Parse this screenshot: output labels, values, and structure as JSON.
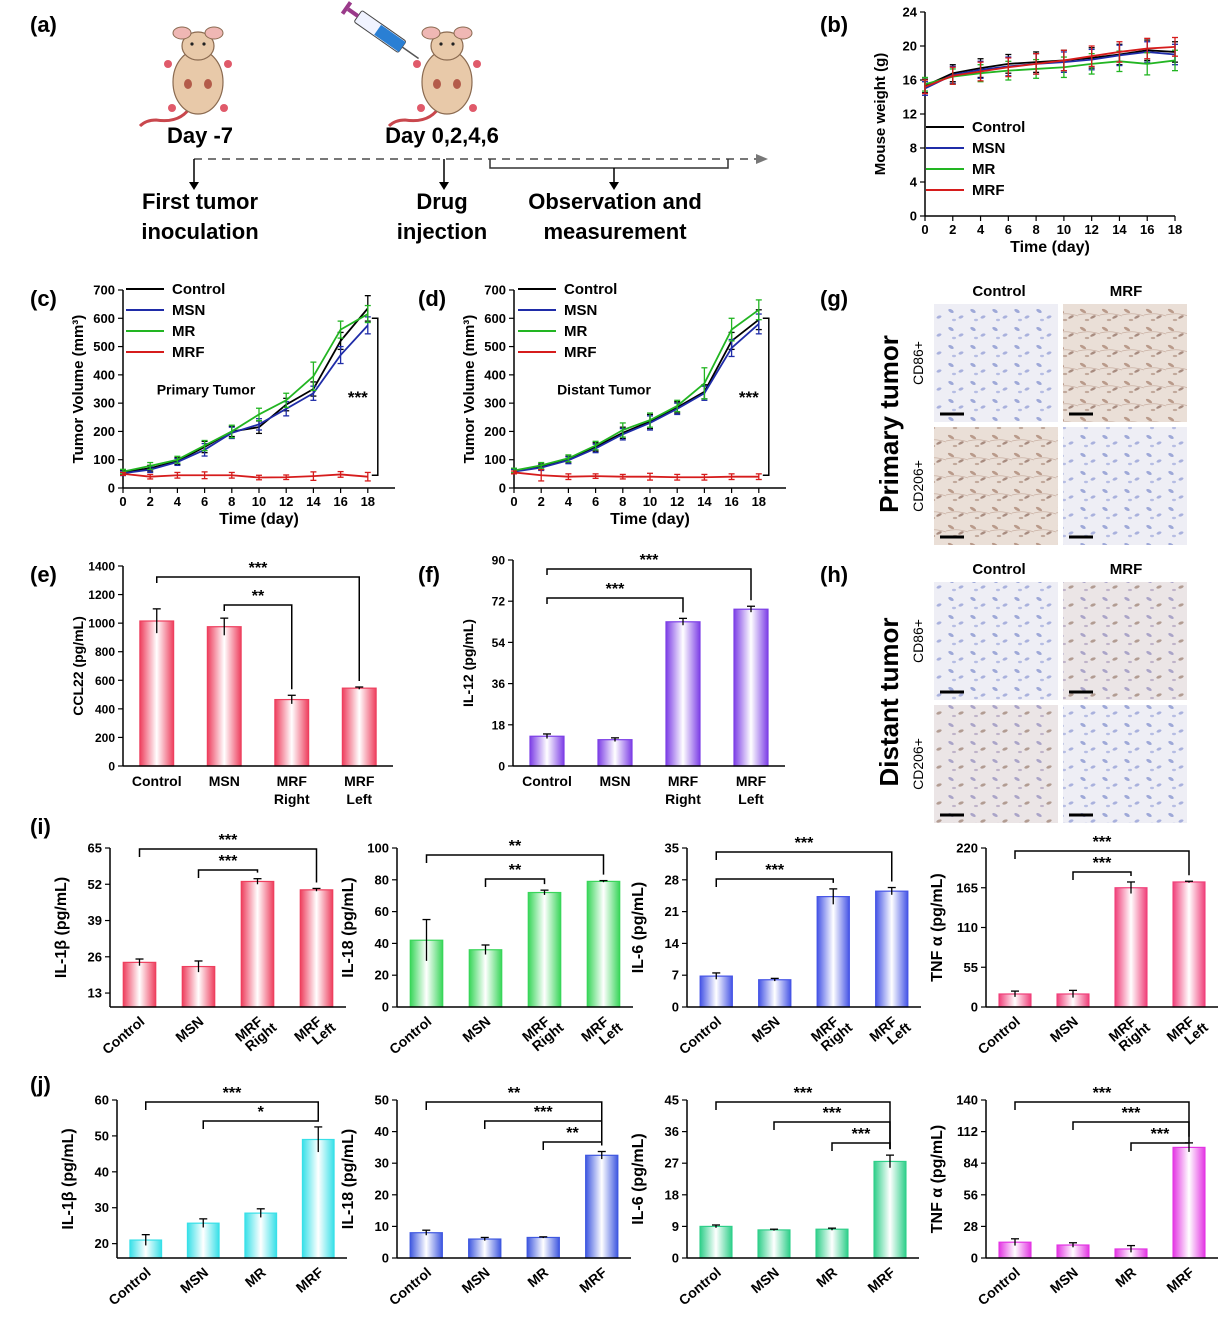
{
  "colors": {
    "control": "#000000",
    "msn": "#1f2ca8",
    "mr": "#22b522",
    "mrf": "#d61c1c",
    "bar_red": "#ee3f5e",
    "bar_purple": "#7d3fe6",
    "bar_green": "#39d65a",
    "bar_blue": "#4655e6",
    "bar_pink": "#f0407a",
    "bar_cyan": "#38e0e8",
    "bar_slate": "#3f58e0",
    "bar_teal": "#2fcf8a",
    "bar_magenta": "#e336e3"
  },
  "panel_a": {
    "label": "(a)",
    "day1": "Day -7",
    "day2": "Day 0,2,4,6",
    "step1": [
      "First tumor",
      "inoculation"
    ],
    "step2": [
      "Drug",
      "injection"
    ],
    "step3": [
      "Observation and",
      "measurement"
    ]
  },
  "panel_labels": {
    "b": "(b)",
    "c": "(c)",
    "d": "(d)",
    "e": "(e)",
    "f": "(f)",
    "g": "(g)",
    "h": "(h)",
    "i": "(i)",
    "j": "(j)"
  },
  "panel_g": {
    "col_labels": [
      "Control",
      "MRF"
    ],
    "row_labels": [
      "CD86+",
      "CD206+"
    ],
    "side_title": "Primary tumor"
  },
  "panel_h": {
    "col_labels": [
      "Control",
      "MRF"
    ],
    "row_labels": [
      "CD86+",
      "CD206+"
    ],
    "side_title": "Distant tumor"
  },
  "chart_data": [
    {
      "id": "b",
      "type": "line",
      "xlabel": "Time (day)",
      "ylabel": "Mouse weight (g)",
      "xlim": [
        0,
        18
      ],
      "ylim": [
        0,
        24
      ],
      "xticks": [
        0,
        2,
        4,
        6,
        8,
        10,
        12,
        14,
        16,
        18
      ],
      "yticks": [
        0,
        4,
        8,
        12,
        16,
        20,
        24
      ],
      "x": [
        0,
        2,
        4,
        6,
        8,
        10,
        12,
        14,
        16,
        18
      ],
      "legend": [
        "Control",
        "MSN",
        "MR",
        "MRF"
      ],
      "series": [
        {
          "name": "Control",
          "values": [
            15.3,
            16.8,
            17.4,
            17.9,
            18.1,
            18.3,
            18.6,
            19.0,
            19.5,
            19.3
          ],
          "err": [
            0.8,
            1.0,
            1.1,
            1.1,
            1.2,
            1.2,
            1.2,
            1.2,
            1.2,
            1.2
          ]
        },
        {
          "name": "MSN",
          "values": [
            15.0,
            16.6,
            17.2,
            17.6,
            17.9,
            18.1,
            18.4,
            18.9,
            19.3,
            19.0
          ],
          "err": [
            0.8,
            1.0,
            1.0,
            1.1,
            1.2,
            1.2,
            1.2,
            1.2,
            1.2,
            1.2
          ]
        },
        {
          "name": "MR",
          "values": [
            15.5,
            16.4,
            16.8,
            17.1,
            17.3,
            17.5,
            17.9,
            18.2,
            17.9,
            18.3
          ],
          "err": [
            0.8,
            0.9,
            1.0,
            1.1,
            1.1,
            1.2,
            1.2,
            1.2,
            1.3,
            1.2
          ]
        },
        {
          "name": "MRF",
          "values": [
            15.2,
            16.5,
            17.0,
            17.5,
            17.9,
            18.3,
            18.8,
            19.3,
            19.7,
            19.9
          ],
          "err": [
            0.8,
            1.0,
            1.1,
            1.1,
            1.2,
            1.2,
            1.2,
            1.2,
            1.2,
            1.1
          ]
        }
      ]
    },
    {
      "id": "c",
      "type": "line",
      "annotation": "Primary Tumor",
      "significance": "***",
      "xlabel": "Time (day)",
      "ylabel": "Tumor Volume (mm³)",
      "xlim": [
        0,
        20
      ],
      "ylim": [
        0,
        700
      ],
      "xticks": [
        0,
        2,
        4,
        6,
        8,
        10,
        12,
        14,
        16,
        18
      ],
      "yticks": [
        0,
        100,
        200,
        300,
        400,
        500,
        600,
        700
      ],
      "x": [
        0,
        2,
        4,
        6,
        8,
        10,
        12,
        14,
        16,
        18
      ],
      "legend": [
        "Control",
        "MSN",
        "MR",
        "MRF"
      ],
      "series": [
        {
          "name": "Control",
          "values": [
            55,
            70,
            95,
            145,
            200,
            215,
            295,
            350,
            520,
            635
          ],
          "err": [
            8,
            10,
            12,
            20,
            18,
            22,
            22,
            25,
            30,
            45
          ]
        },
        {
          "name": "MSN",
          "values": [
            52,
            65,
            92,
            135,
            195,
            225,
            280,
            335,
            470,
            575
          ],
          "err": [
            8,
            10,
            12,
            22,
            20,
            20,
            25,
            25,
            30,
            30
          ]
        },
        {
          "name": "MR",
          "values": [
            58,
            78,
            100,
            150,
            200,
            260,
            310,
            395,
            560,
            615
          ],
          "err": [
            8,
            12,
            12,
            18,
            22,
            22,
            25,
            50,
            30,
            30
          ]
        },
        {
          "name": "MRF",
          "values": [
            50,
            40,
            45,
            45,
            45,
            37,
            38,
            42,
            48,
            40
          ],
          "err": [
            5,
            8,
            10,
            12,
            10,
            8,
            8,
            15,
            10,
            15
          ]
        }
      ]
    },
    {
      "id": "d",
      "type": "line",
      "annotation": "Distant Tumor",
      "significance": "***",
      "xlabel": "Time (day)",
      "ylabel": "Tumor Volume (mm³)",
      "xlim": [
        0,
        20
      ],
      "ylim": [
        0,
        700
      ],
      "xticks": [
        0,
        2,
        4,
        6,
        8,
        10,
        12,
        14,
        16,
        18
      ],
      "yticks": [
        0,
        100,
        200,
        300,
        400,
        500,
        600,
        700
      ],
      "x": [
        0,
        2,
        4,
        6,
        8,
        10,
        12,
        14,
        16,
        18
      ],
      "legend": [
        "Control",
        "MSN",
        "MR",
        "MRF"
      ],
      "series": [
        {
          "name": "Control",
          "values": [
            60,
            75,
            100,
            145,
            195,
            235,
            285,
            340,
            520,
            595
          ],
          "err": [
            8,
            10,
            12,
            15,
            20,
            25,
            20,
            25,
            30,
            35
          ]
        },
        {
          "name": "MSN",
          "values": [
            58,
            72,
            98,
            140,
            190,
            230,
            280,
            335,
            495,
            580
          ],
          "err": [
            8,
            10,
            12,
            15,
            20,
            25,
            20,
            25,
            30,
            35
          ]
        },
        {
          "name": "MR",
          "values": [
            62,
            80,
            105,
            150,
            205,
            240,
            290,
            370,
            560,
            630
          ],
          "err": [
            8,
            10,
            12,
            15,
            25,
            25,
            20,
            55,
            40,
            35
          ]
        },
        {
          "name": "MRF",
          "values": [
            55,
            45,
            40,
            42,
            40,
            40,
            38,
            38,
            40,
            40
          ],
          "err": [
            5,
            20,
            10,
            8,
            8,
            12,
            10,
            10,
            10,
            10
          ]
        }
      ]
    },
    {
      "id": "e",
      "type": "bar",
      "ylabel": "CCL22 (pg/mL)",
      "ylim": [
        0,
        1400
      ],
      "yticks": [
        0,
        200,
        400,
        600,
        800,
        1000,
        1200,
        1400
      ],
      "categories": [
        [
          "Control"
        ],
        [
          "MSN"
        ],
        [
          "MRF",
          "Right"
        ],
        [
          "MRF",
          "Left"
        ]
      ],
      "values": [
        1015,
        975,
        465,
        545
      ],
      "err": [
        85,
        60,
        30,
        8
      ],
      "significance": [
        {
          "from": 1,
          "to": 2,
          "label": "**"
        },
        {
          "from": 0,
          "to": 3,
          "label": "***"
        }
      ]
    },
    {
      "id": "f",
      "type": "bar",
      "ylabel": "IL-12 (pg/mL)",
      "ylim": [
        0,
        90
      ],
      "yticks": [
        0,
        18,
        36,
        54,
        72,
        90
      ],
      "categories": [
        [
          "Control"
        ],
        [
          "MSN"
        ],
        [
          "MRF",
          "Right"
        ],
        [
          "MRF",
          "Left"
        ]
      ],
      "values": [
        13,
        11.5,
        63,
        68.5
      ],
      "err": [
        1,
        0.8,
        1.5,
        1.3
      ],
      "significance": [
        {
          "from": 0,
          "to": 2,
          "label": "***"
        },
        {
          "from": 0,
          "to": 3,
          "label": "***"
        }
      ]
    },
    {
      "id": "i1",
      "type": "bar",
      "ylabel": "IL-1β (pg/mL)",
      "ylim": [
        8,
        65
      ],
      "yticks": [
        13,
        26,
        39,
        52,
        65
      ],
      "categories": [
        [
          "Control"
        ],
        [
          "MSN"
        ],
        [
          "MRF",
          "Right"
        ],
        [
          "MRF",
          "Left"
        ]
      ],
      "values": [
        24,
        22.5,
        53,
        50
      ],
      "err": [
        1.2,
        2,
        1,
        0.5
      ],
      "significance": [
        {
          "from": 1,
          "to": 2,
          "label": "***"
        },
        {
          "from": 0,
          "to": 3,
          "label": "***"
        }
      ]
    },
    {
      "id": "i2",
      "type": "bar",
      "ylabel": "IL-18 (pg/mL)",
      "ylim": [
        0,
        100
      ],
      "yticks": [
        0,
        20,
        40,
        60,
        80,
        100
      ],
      "categories": [
        [
          "Control"
        ],
        [
          "MSN"
        ],
        [
          "MRF",
          "Right"
        ],
        [
          "MRF",
          "Left"
        ]
      ],
      "values": [
        42,
        36,
        72,
        79
      ],
      "err": [
        13,
        3,
        1.5,
        0.5
      ],
      "significance": [
        {
          "from": 1,
          "to": 2,
          "label": "**"
        },
        {
          "from": 0,
          "to": 3,
          "label": "**"
        }
      ]
    },
    {
      "id": "i3",
      "type": "bar",
      "ylabel": "IL-6 (pg/mL)",
      "ylim": [
        0,
        35
      ],
      "yticks": [
        0,
        7,
        14,
        21,
        28,
        35
      ],
      "categories": [
        [
          "Control"
        ],
        [
          "MSN"
        ],
        [
          "MRF",
          "Right"
        ],
        [
          "MRF",
          "Left"
        ]
      ],
      "values": [
        6.8,
        6,
        24.3,
        25.5
      ],
      "err": [
        0.7,
        0.3,
        1.7,
        0.8
      ],
      "significance": [
        {
          "from": 0,
          "to": 2,
          "label": "***"
        },
        {
          "from": 0,
          "to": 3,
          "label": "***"
        }
      ]
    },
    {
      "id": "i4",
      "type": "bar",
      "ylabel": "TNF α (pg/mL)",
      "ylim": [
        0,
        220
      ],
      "yticks": [
        0,
        55,
        110,
        165,
        220
      ],
      "categories": [
        [
          "Control"
        ],
        [
          "MSN"
        ],
        [
          "MRF",
          "Right"
        ],
        [
          "MRF",
          "Left"
        ]
      ],
      "values": [
        18,
        18,
        165,
        173
      ],
      "err": [
        4,
        5,
        8,
        1
      ],
      "significance": [
        {
          "from": 1,
          "to": 2,
          "label": "***"
        },
        {
          "from": 0,
          "to": 3,
          "label": "***"
        }
      ]
    },
    {
      "id": "j1",
      "type": "bar",
      "ylabel": "IL-1β (pg/mL)",
      "ylim": [
        16,
        60
      ],
      "yticks": [
        20,
        30,
        40,
        50,
        60
      ],
      "categories": [
        [
          "Control"
        ],
        [
          "MSN"
        ],
        [
          "MR"
        ],
        [
          "MRF"
        ]
      ],
      "values": [
        21,
        25.7,
        28.5,
        49
      ],
      "err": [
        1.5,
        1.2,
        1.2,
        3.5
      ],
      "significance": [
        {
          "from": 1,
          "to": 3,
          "label": "*"
        },
        {
          "from": 0,
          "to": 3,
          "label": "***"
        }
      ]
    },
    {
      "id": "j2",
      "type": "bar",
      "ylabel": "IL-18 (pg/mL)",
      "ylim": [
        0,
        50
      ],
      "yticks": [
        0,
        10,
        20,
        30,
        40,
        50
      ],
      "categories": [
        [
          "Control"
        ],
        [
          "MSN"
        ],
        [
          "MR"
        ],
        [
          "MRF"
        ]
      ],
      "values": [
        8,
        6,
        6.5,
        32.5
      ],
      "err": [
        0.8,
        0.5,
        0.2,
        1.2
      ],
      "significance": [
        {
          "from": 2,
          "to": 3,
          "label": "**"
        },
        {
          "from": 1,
          "to": 3,
          "label": "***"
        },
        {
          "from": 0,
          "to": 3,
          "label": "**"
        }
      ]
    },
    {
      "id": "j3",
      "type": "bar",
      "ylabel": "IL-6 (pg/mL)",
      "ylim": [
        0,
        45
      ],
      "yticks": [
        0,
        9,
        18,
        27,
        36,
        45
      ],
      "categories": [
        [
          "Control"
        ],
        [
          "MSN"
        ],
        [
          "MR"
        ],
        [
          "MRF"
        ]
      ],
      "values": [
        9,
        8,
        8.2,
        27.5
      ],
      "err": [
        0.4,
        0.2,
        0.3,
        1.8
      ],
      "significance": [
        {
          "from": 2,
          "to": 3,
          "label": "***"
        },
        {
          "from": 1,
          "to": 3,
          "label": "***"
        },
        {
          "from": 0,
          "to": 3,
          "label": "***"
        }
      ]
    },
    {
      "id": "j4",
      "type": "bar",
      "ylabel": "TNF α (pg/mL)",
      "ylim": [
        0,
        140
      ],
      "yticks": [
        0,
        28,
        56,
        84,
        112,
        140
      ],
      "categories": [
        [
          "Control"
        ],
        [
          "MSN"
        ],
        [
          "MR"
        ],
        [
          "MRF"
        ]
      ],
      "values": [
        14,
        11.5,
        8,
        98
      ],
      "err": [
        3,
        2,
        3,
        4
      ],
      "significance": [
        {
          "from": 2,
          "to": 3,
          "label": "***"
        },
        {
          "from": 1,
          "to": 3,
          "label": "***"
        },
        {
          "from": 0,
          "to": 3,
          "label": "***"
        }
      ]
    }
  ]
}
